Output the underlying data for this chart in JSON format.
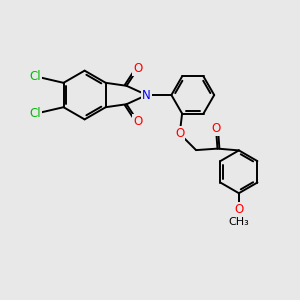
{
  "background_color": "#e8e8e8",
  "bond_color": "#000000",
  "bond_width": 1.4,
  "atom_colors": {
    "N": "#0000ff",
    "O": "#ff0000",
    "Cl": "#00bb00",
    "C": "#000000"
  },
  "font_size": 8.5,
  "figsize": [
    3.0,
    3.0
  ],
  "dpi": 100
}
